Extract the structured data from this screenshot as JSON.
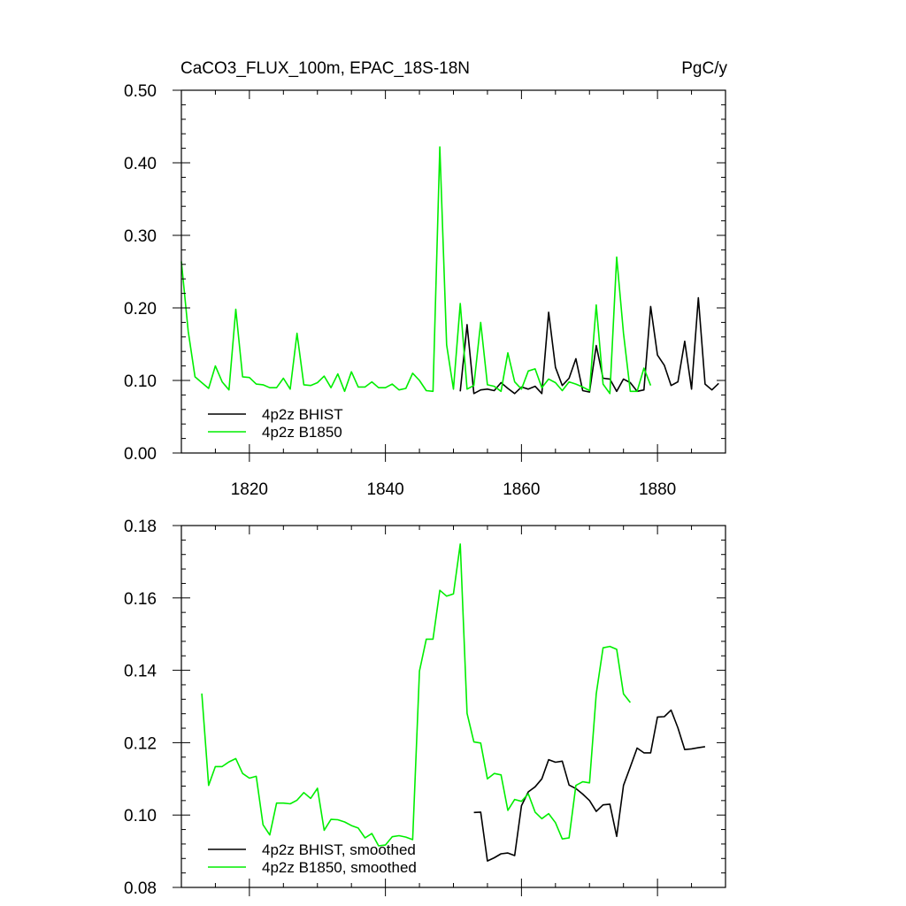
{
  "header": {
    "title": "CaCO3_FLUX_100m, EPAC_18S-18N",
    "units": "PgC/y"
  },
  "colors": {
    "bhist": "#000000",
    "b1850": "#00ee00"
  },
  "chart_data": [
    {
      "type": "line",
      "xlim": [
        1810,
        1890
      ],
      "ylim": [
        0.0,
        0.5
      ],
      "xticks": [
        1820,
        1840,
        1860,
        1880
      ],
      "xtick_labels": [
        "1820",
        "1840",
        "1860",
        "1880"
      ],
      "yticks": [
        0.0,
        0.1,
        0.2,
        0.3,
        0.4,
        0.5
      ],
      "ytick_labels": [
        "0.00",
        "0.10",
        "0.20",
        "0.30",
        "0.40",
        "0.50"
      ],
      "grid": false,
      "legend": "bottom-left",
      "series": [
        {
          "name": "4p2z BHIST",
          "color": "#000000",
          "x": [
            1851,
            1852,
            1853,
            1854,
            1855,
            1856,
            1857,
            1858,
            1859,
            1860,
            1861,
            1862,
            1863,
            1864,
            1865,
            1866,
            1867,
            1868,
            1869,
            1870,
            1871,
            1872,
            1873,
            1874,
            1875,
            1876,
            1877,
            1878,
            1879,
            1880,
            1881,
            1882,
            1883,
            1884,
            1885,
            1886,
            1887,
            1888,
            1889
          ],
          "y": [
            0.085,
            0.177,
            0.082,
            0.087,
            0.088,
            0.086,
            0.097,
            0.089,
            0.082,
            0.091,
            0.088,
            0.092,
            0.082,
            0.194,
            0.118,
            0.093,
            0.103,
            0.13,
            0.086,
            0.084,
            0.148,
            0.103,
            0.102,
            0.085,
            0.102,
            0.097,
            0.085,
            0.087,
            0.202,
            0.135,
            0.121,
            0.093,
            0.098,
            0.154,
            0.088,
            0.214,
            0.095,
            0.087,
            0.096
          ]
        },
        {
          "name": "4p2z B1850",
          "color": "#00ee00",
          "x": [
            1810,
            1811,
            1812,
            1813,
            1814,
            1815,
            1816,
            1817,
            1818,
            1819,
            1820,
            1821,
            1822,
            1823,
            1824,
            1825,
            1826,
            1827,
            1828,
            1829,
            1830,
            1831,
            1832,
            1833,
            1834,
            1835,
            1836,
            1837,
            1838,
            1839,
            1840,
            1841,
            1842,
            1843,
            1844,
            1845,
            1846,
            1847,
            1848,
            1849,
            1850,
            1851,
            1852,
            1853,
            1854,
            1855,
            1856,
            1857,
            1858,
            1859,
            1860,
            1861,
            1862,
            1863,
            1864,
            1865,
            1866,
            1867,
            1868,
            1869,
            1870,
            1871,
            1872,
            1873,
            1874,
            1875,
            1876,
            1877,
            1878,
            1879
          ],
          "y": [
            0.264,
            0.168,
            0.105,
            0.097,
            0.089,
            0.12,
            0.098,
            0.087,
            0.198,
            0.105,
            0.104,
            0.095,
            0.094,
            0.09,
            0.09,
            0.103,
            0.088,
            0.165,
            0.094,
            0.093,
            0.097,
            0.106,
            0.09,
            0.109,
            0.085,
            0.112,
            0.091,
            0.091,
            0.098,
            0.09,
            0.09,
            0.095,
            0.087,
            0.089,
            0.11,
            0.1,
            0.086,
            0.085,
            0.422,
            0.149,
            0.088,
            0.206,
            0.088,
            0.093,
            0.18,
            0.094,
            0.092,
            0.085,
            0.138,
            0.098,
            0.088,
            0.113,
            0.116,
            0.09,
            0.102,
            0.097,
            0.086,
            0.098,
            0.095,
            0.091,
            0.086,
            0.204,
            0.095,
            0.082,
            0.27,
            0.165,
            0.085,
            0.085,
            0.117,
            0.093
          ]
        }
      ]
    },
    {
      "type": "line",
      "xlim": [
        1810,
        1890
      ],
      "ylim": [
        0.08,
        0.18
      ],
      "xticks": [
        1820,
        1840,
        1860,
        1880
      ],
      "yticks": [
        0.08,
        0.1,
        0.12,
        0.14,
        0.16,
        0.18
      ],
      "ytick_labels": [
        "0.08",
        "0.10",
        "0.12",
        "0.14",
        "0.16",
        "0.18"
      ],
      "grid": false,
      "legend": "bottom-left",
      "series": [
        {
          "name": "4p2z BHIST, smoothed",
          "color": "#000000",
          "x": [
            1853,
            1854,
            1855,
            1856,
            1857,
            1858,
            1859,
            1860,
            1861,
            1862,
            1863,
            1864,
            1865,
            1866,
            1867,
            1868,
            1869,
            1870,
            1871,
            1872,
            1873,
            1874,
            1875,
            1876,
            1877,
            1878,
            1879,
            1880,
            1881,
            1882,
            1883,
            1884,
            1885,
            1886,
            1887
          ],
          "y": [
            0.1007,
            0.1008,
            0.0873,
            0.0882,
            0.0893,
            0.0895,
            0.0888,
            0.1026,
            0.1064,
            0.1078,
            0.11,
            0.1153,
            0.1146,
            0.1149,
            0.1083,
            0.1073,
            0.1058,
            0.104,
            0.101,
            0.1028,
            0.103,
            0.0941,
            0.1082,
            0.1133,
            0.1185,
            0.1172,
            0.1172,
            0.1271,
            0.1272,
            0.129,
            0.1241,
            0.1181,
            0.1183,
            0.1186,
            0.1189
          ]
        },
        {
          "name": "4p2z B1850, smoothed",
          "color": "#00ee00",
          "x": [
            1813,
            1814,
            1815,
            1816,
            1817,
            1818,
            1819,
            1820,
            1821,
            1822,
            1823,
            1824,
            1825,
            1826,
            1827,
            1828,
            1829,
            1830,
            1831,
            1832,
            1833,
            1834,
            1835,
            1836,
            1837,
            1838,
            1839,
            1840,
            1841,
            1842,
            1843,
            1844,
            1845,
            1846,
            1847,
            1848,
            1849,
            1850,
            1851,
            1852,
            1853,
            1854,
            1855,
            1856,
            1857,
            1858,
            1859,
            1860,
            1861,
            1862,
            1863,
            1864,
            1865,
            1866,
            1867,
            1868,
            1869,
            1870,
            1871,
            1872,
            1873,
            1874,
            1875,
            1876
          ],
          "y": [
            0.1336,
            0.1082,
            0.1134,
            0.1134,
            0.1147,
            0.1156,
            0.1115,
            0.1102,
            0.1107,
            0.0973,
            0.0945,
            0.1033,
            0.1033,
            0.1031,
            0.1041,
            0.1062,
            0.1046,
            0.1074,
            0.0958,
            0.0988,
            0.0987,
            0.0981,
            0.0971,
            0.0964,
            0.0937,
            0.0949,
            0.0915,
            0.0917,
            0.094,
            0.0943,
            0.0939,
            0.0932,
            0.1398,
            0.1486,
            0.1486,
            0.1621,
            0.1605,
            0.1611,
            0.1749,
            0.1281,
            0.1202,
            0.1199,
            0.11,
            0.1115,
            0.1111,
            0.1013,
            0.1043,
            0.1038,
            0.1059,
            0.1008,
            0.099,
            0.1004,
            0.0979,
            0.0934,
            0.0937,
            0.1082,
            0.1092,
            0.1089,
            0.1335,
            0.1462,
            0.1466,
            0.1458,
            0.1335,
            0.1311
          ]
        }
      ]
    }
  ]
}
